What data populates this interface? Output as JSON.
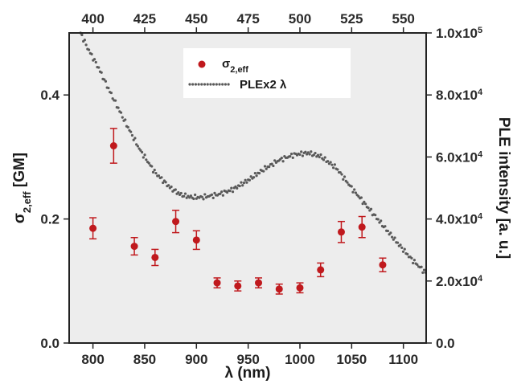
{
  "chart_data": {
    "type": "scatter",
    "colors": {
      "sigma": "#c0191d",
      "ple": "#595959",
      "frame": "#222222",
      "plot_bg": "#ededed"
    },
    "axes": {
      "bottom": {
        "label_main": "λ (nm)",
        "range": [
          777,
          1122
        ],
        "ticks": [
          800,
          850,
          900,
          950,
          1000,
          1050,
          1100
        ],
        "tick_labels": [
          "800",
          "850",
          "900",
          "950",
          "1000",
          "1050",
          "1100"
        ]
      },
      "top": {
        "range": [
          388.5,
          561
        ],
        "ticks": [
          400,
          425,
          450,
          475,
          500,
          525,
          550
        ],
        "tick_labels": [
          "400",
          "425",
          "450",
          "475",
          "500",
          "525",
          "550"
        ]
      },
      "left": {
        "label_main": "σ",
        "label_sub": "2,eff",
        "label_suffix": " [GM]",
        "range": [
          0.0,
          0.5
        ],
        "ticks": [
          0.0,
          0.2,
          0.4
        ],
        "tick_labels": [
          "0.0",
          "0.2",
          "0.4"
        ]
      },
      "right": {
        "label_main": "PLE intensity [a. u.]",
        "range": [
          0,
          100000
        ],
        "ticks": [
          0,
          20000,
          40000,
          60000,
          80000,
          100000
        ],
        "tick_labels": [
          {
            "mant": "0.0",
            "exp": ""
          },
          {
            "mant": "2.0x10",
            "exp": "4"
          },
          {
            "mant": "4.0x10",
            "exp": "4"
          },
          {
            "mant": "6.0x10",
            "exp": "4"
          },
          {
            "mant": "8.0x10",
            "exp": "4"
          },
          {
            "mant": "1.0x10",
            "exp": "5"
          }
        ]
      }
    },
    "legend": {
      "position": "top-center",
      "sigma_main": "σ",
      "sigma_sub": "2,eff",
      "ple_main": "PLEx2 λ"
    },
    "series": [
      {
        "name": "σ2,eff",
        "axis": "left",
        "x": [
          800,
          820,
          840,
          860,
          880,
          900,
          920,
          940,
          960,
          980,
          1000,
          1020,
          1040,
          1060,
          1080
        ],
        "y": [
          0.185,
          0.318,
          0.156,
          0.138,
          0.196,
          0.166,
          0.097,
          0.092,
          0.097,
          0.087,
          0.089,
          0.118,
          0.179,
          0.187,
          0.126
        ],
        "err": [
          0.017,
          0.028,
          0.014,
          0.013,
          0.018,
          0.015,
          0.008,
          0.008,
          0.008,
          0.008,
          0.008,
          0.011,
          0.017,
          0.017,
          0.011
        ]
      },
      {
        "name": "PLEx2 λ",
        "axis": "right",
        "x_range": [
          788,
          1122
        ],
        "curve": [
          [
            788,
            100000
          ],
          [
            795,
            95000
          ],
          [
            805,
            89000
          ],
          [
            815,
            82000
          ],
          [
            830,
            72000
          ],
          [
            845,
            62500
          ],
          [
            860,
            55000
          ],
          [
            875,
            50000
          ],
          [
            885,
            47800
          ],
          [
            895,
            47000
          ],
          [
            905,
            47000
          ],
          [
            920,
            47800
          ],
          [
            935,
            49500
          ],
          [
            950,
            52500
          ],
          [
            965,
            56000
          ],
          [
            980,
            59000
          ],
          [
            995,
            60800
          ],
          [
            1008,
            61300
          ],
          [
            1020,
            60200
          ],
          [
            1035,
            56500
          ],
          [
            1050,
            50000
          ],
          [
            1065,
            44000
          ],
          [
            1080,
            38000
          ],
          [
            1095,
            32000
          ],
          [
            1108,
            27000
          ],
          [
            1122,
            22500
          ]
        ]
      }
    ]
  }
}
